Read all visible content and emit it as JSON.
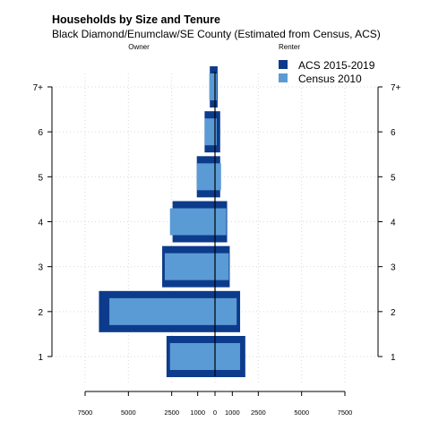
{
  "chart_data": {
    "type": "bar",
    "orientation": "horizontal-population-pyramid",
    "title": "Households by Size and Tenure",
    "subtitle": "Black Diamond/Enumclaw/SE County (Estimated from Census, ACS)",
    "left_label": "Owner",
    "right_label": "Renter",
    "categories": [
      "1",
      "2",
      "3",
      "4",
      "5",
      "6",
      "7+"
    ],
    "xlim": [
      -7500,
      7500
    ],
    "x_ticks": [
      {
        "value": -7500,
        "label": "7500"
      },
      {
        "value": -5000,
        "label": "5000"
      },
      {
        "value": -2500,
        "label": "2500"
      },
      {
        "value": -1000,
        "label": "1000"
      },
      {
        "value": 0,
        "label": "0"
      },
      {
        "value": 1000,
        "label": "1000"
      },
      {
        "value": 2500,
        "label": "2500"
      },
      {
        "value": 5000,
        "label": "5000"
      },
      {
        "value": 7500,
        "label": "7500"
      }
    ],
    "grid": "dotted",
    "legend_position": "top-right",
    "series": [
      {
        "name": "ACS 2015-2019",
        "color": "#0d3b8c",
        "owner": [
          2800,
          6700,
          3050,
          2450,
          1050,
          600,
          300
        ],
        "renter": [
          1750,
          1450,
          850,
          700,
          300,
          300,
          150
        ]
      },
      {
        "name": "Census 2010",
        "color": "#5b9bd5",
        "owner": [
          2600,
          6100,
          2900,
          2600,
          1050,
          600,
          330
        ],
        "renter": [
          1450,
          1250,
          800,
          650,
          350,
          100,
          100
        ]
      }
    ]
  }
}
